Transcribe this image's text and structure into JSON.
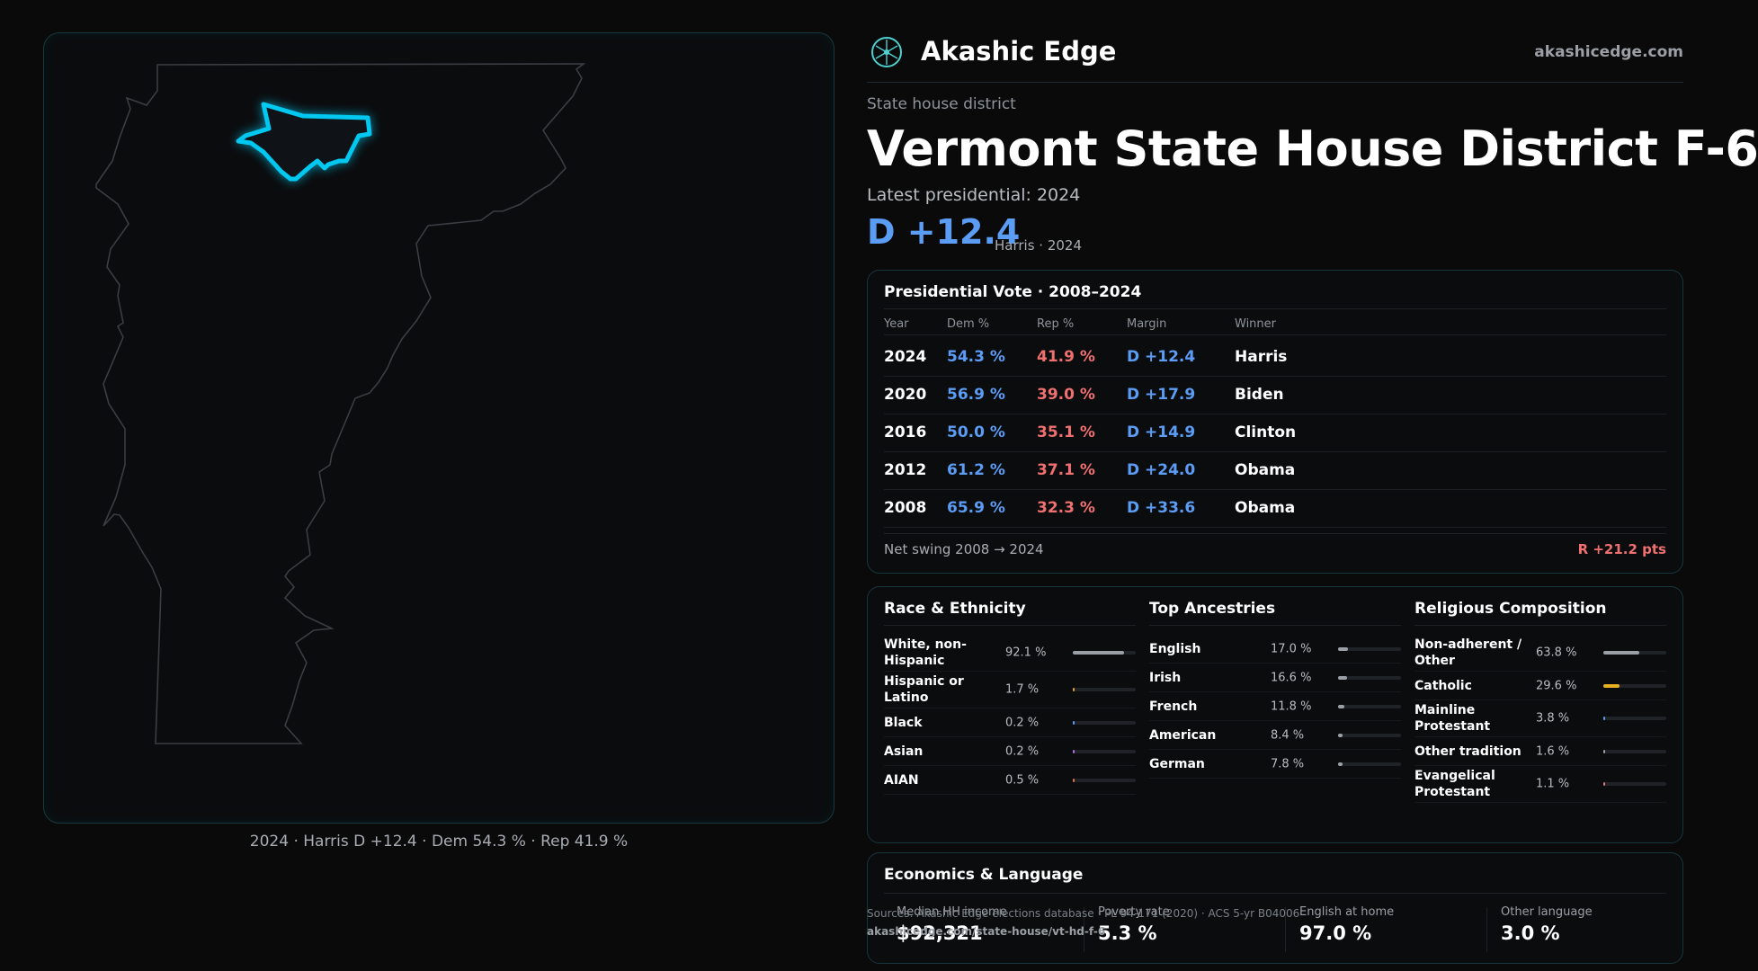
{
  "brand": {
    "name": "Akashic Edge",
    "url": "akashicedge.com"
  },
  "header": {
    "kicker": "State house district",
    "title": "Vermont State House District F-6",
    "latest_label": "Latest presidential: 2024",
    "margin": "D +12.4",
    "margin_sub": "Harris · 2024"
  },
  "map": {
    "caption": "2024 · Harris D +12.4 · Dem 54.3 % · Rep 41.9 %",
    "district_color": "#00c8f0"
  },
  "presidential": {
    "title": "Presidential Vote · 2008–2024",
    "headers": [
      "Year",
      "Dem %",
      "Rep %",
      "Margin",
      "Winner"
    ],
    "rows": [
      {
        "year": "2024",
        "dem": "54.3 %",
        "rep": "41.9 %",
        "margin": "D +12.4",
        "winner": "Harris"
      },
      {
        "year": "2020",
        "dem": "56.9 %",
        "rep": "39.0 %",
        "margin": "D +17.9",
        "winner": "Biden"
      },
      {
        "year": "2016",
        "dem": "50.0 %",
        "rep": "35.1 %",
        "margin": "D +14.9",
        "winner": "Clinton"
      },
      {
        "year": "2012",
        "dem": "61.2 %",
        "rep": "37.1 %",
        "margin": "D +24.0",
        "winner": "Obama"
      },
      {
        "year": "2008",
        "dem": "65.9 %",
        "rep": "32.3 %",
        "margin": "D +33.6",
        "winner": "Obama"
      }
    ],
    "swing_label": "Net swing 2008 → 2024",
    "swing_value": "R +21.2 pts"
  },
  "race": {
    "title": "Race & Ethnicity",
    "items": [
      {
        "label": "White, non-Hispanic",
        "value": "92.1 %",
        "share": 0.921,
        "color": "#9aa0a6"
      },
      {
        "label": "Hispanic or Latino",
        "value": "1.7 %",
        "share": 0.017,
        "color": "#e0a020"
      },
      {
        "label": "Black",
        "value": "0.2 %",
        "share": 0.002,
        "color": "#5b9cf5"
      },
      {
        "label": "Asian",
        "value": "0.2 %",
        "share": 0.002,
        "color": "#b070e0"
      },
      {
        "label": "AIAN",
        "value": "0.5 %",
        "share": 0.005,
        "color": "#e07040"
      }
    ]
  },
  "ancestry": {
    "title": "Top Ancestries",
    "items": [
      {
        "label": "English",
        "value": "17.0 %",
        "share": 0.17,
        "color": "#9aa0a6"
      },
      {
        "label": "Irish",
        "value": "16.6 %",
        "share": 0.166,
        "color": "#9aa0a6"
      },
      {
        "label": "French",
        "value": "11.8 %",
        "share": 0.118,
        "color": "#9aa0a6"
      },
      {
        "label": "American",
        "value": "8.4 %",
        "share": 0.084,
        "color": "#9aa0a6"
      },
      {
        "label": "German",
        "value": "7.8 %",
        "share": 0.078,
        "color": "#9aa0a6"
      }
    ]
  },
  "religion": {
    "title": "Religious Composition",
    "items": [
      {
        "label": "Non-adherent / Other",
        "value": "63.8 %",
        "share": 0.638,
        "color": "#9aa0a6"
      },
      {
        "label": "Catholic",
        "value": "29.6 %",
        "share": 0.296,
        "color": "#e8b020"
      },
      {
        "label": "Mainline Protestant",
        "value": "3.8 %",
        "share": 0.038,
        "color": "#5b9cf5"
      },
      {
        "label": "Other tradition",
        "value": "1.6 %",
        "share": 0.016,
        "color": "#9aa0a6"
      },
      {
        "label": "Evangelical Protestant",
        "value": "1.1 %",
        "share": 0.011,
        "color": "#e07080"
      }
    ]
  },
  "economics": {
    "title": "Economics & Language",
    "cells": [
      {
        "label": "Median HH income",
        "value": "$92,321"
      },
      {
        "label": "Poverty rate",
        "value": "5.3 %"
      },
      {
        "label": "English at home",
        "value": "97.0 %"
      },
      {
        "label": "Other language",
        "value": "3.0 %"
      }
    ]
  },
  "source": {
    "line": "Sources: Akashic Edge elections database · PL 94-171 (2020) · ACS 5-yr B04006",
    "url": "akashicedge.com/state-house/vt-hd-f-6"
  }
}
